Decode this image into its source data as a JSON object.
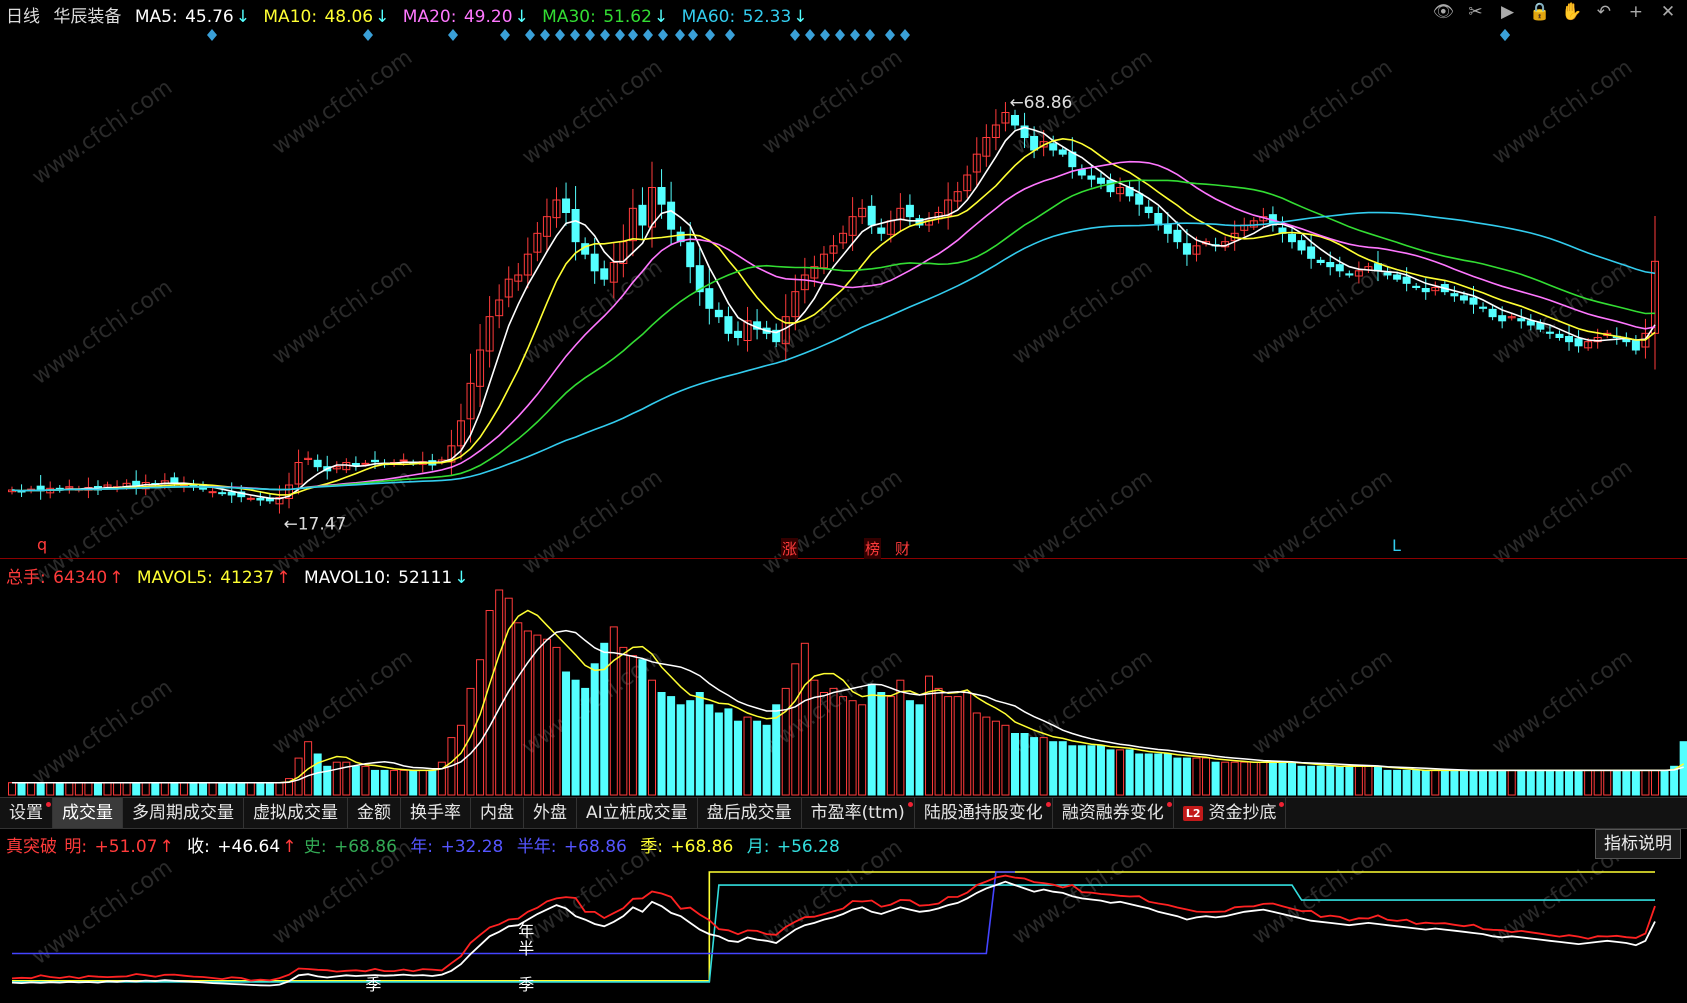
{
  "colors": {
    "up": "#ff3b3b",
    "down": "#54ffff",
    "ma5": "#ffffff",
    "ma10": "#ffff33",
    "ma20": "#ff77ff",
    "ma30": "#33dd33",
    "ma60": "#33ccee",
    "yuefen": "#33dddd",
    "nian": "#4444ff",
    "shi": "#33aa55"
  },
  "header": {
    "period": "日线",
    "stock_name": "华辰装备",
    "ma5": {
      "label": "MA5: ",
      "value": "45.76",
      "arrow": "↓"
    },
    "ma10": {
      "label": "MA10: ",
      "value": "48.06",
      "arrow": "↓"
    },
    "ma20": {
      "label": "MA20: ",
      "value": "49.20",
      "arrow": "↓"
    },
    "ma30": {
      "label": "MA30: ",
      "value": "51.62",
      "arrow": "↓"
    },
    "ma60": {
      "label": "MA60: ",
      "value": "52.33",
      "arrow": "↓"
    }
  },
  "toolbar": {
    "eye": "👁",
    "cut": "✂",
    "play": "▶",
    "lock": "🔒",
    "hand": "✋",
    "undo": "↶",
    "plus": "+",
    "close": "✕"
  },
  "markers": {
    "q": "q",
    "zhang": "涨",
    "bang": "榜",
    "cai": "财",
    "L": "L"
  },
  "vol_header": {
    "zongshou": {
      "label": "总手: ",
      "value": "64340",
      "arrow": "↑"
    },
    "mavol5": {
      "label": "MAVOL5: ",
      "value": "41237",
      "arrow": "↑"
    },
    "mavol10": {
      "label": "MAVOL10: ",
      "value": "52111",
      "arrow": "↓"
    }
  },
  "tabs": [
    {
      "label": "设置",
      "dot": true
    },
    {
      "label": "成交量",
      "dot": false,
      "active": true
    },
    {
      "label": "多周期成交量",
      "dot": false
    },
    {
      "label": "虚拟成交量",
      "dot": false
    },
    {
      "label": "金额",
      "dot": false
    },
    {
      "label": "换手率",
      "dot": false
    },
    {
      "label": "内盘",
      "dot": false
    },
    {
      "label": "外盘",
      "dot": false
    },
    {
      "label": "AI立桩成交量",
      "dot": false
    },
    {
      "label": "盘后成交量",
      "dot": false
    },
    {
      "label": "市盈率(ttm)",
      "dot": true
    },
    {
      "label": "陆股通持股变化",
      "dot": true
    },
    {
      "label": "融资融券变化",
      "dot": true
    },
    {
      "label": "资金抄底",
      "dot": true,
      "l2": "L2"
    }
  ],
  "indicator": {
    "name": "真突破",
    "help": "指标说明",
    "ming": {
      "label": "明: ",
      "value": "+51.07",
      "arrow": "↑"
    },
    "shou": {
      "label": "收: ",
      "value": "+46.64",
      "arrow": "↑"
    },
    "shi": {
      "label": "史: ",
      "value": "+68.86"
    },
    "nian": {
      "label": "年: ",
      "value": "+32.28"
    },
    "bannian": {
      "label": "半年: ",
      "value": "+68.86"
    },
    "ji": {
      "label": "季: ",
      "value": "+68.86"
    },
    "yue": {
      "label": "月: ",
      "value": "+56.28"
    },
    "lbl_nian": "年",
    "lbl_ban": "半",
    "lbl_ji1": "季",
    "lbl_ji2": "季"
  },
  "watermark": "www.cfchi.com",
  "chart_data": {
    "type": "candlestick",
    "high_label": "68.86",
    "low_label": "17.47",
    "ylim": [
      15,
      72
    ],
    "closes": [
      19.2,
      19.0,
      19.3,
      19.1,
      19.4,
      19.2,
      19.6,
      19.3,
      19.5,
      19.2,
      19.8,
      19.6,
      20.0,
      19.7,
      20.1,
      19.9,
      20.3,
      20.0,
      19.8,
      19.6,
      19.3,
      19.0,
      18.8,
      18.6,
      18.4,
      18.2,
      18.0,
      17.9,
      18.3,
      19.8,
      22.5,
      23.0,
      22.0,
      21.5,
      22.0,
      22.5,
      22.2,
      22.4,
      22.6,
      22.3,
      22.5,
      22.8,
      22.4,
      22.6,
      22.2,
      22.8,
      24.5,
      27.5,
      32.0,
      36.0,
      40.0,
      42.0,
      44.5,
      45.0,
      47.5,
      50.0,
      52.0,
      54.0,
      52.5,
      49.0,
      47.5,
      45.5,
      44.5,
      46.5,
      49.0,
      53.0,
      51.0,
      55.5,
      53.5,
      50.5,
      49.0,
      46.0,
      43.0,
      41.0,
      40.0,
      38.0,
      37.5,
      39.5,
      38.5,
      38.0,
      37.0,
      40.0,
      43.0,
      45.0,
      46.0,
      47.5,
      48.5,
      50.0,
      52.0,
      53.0,
      51.0,
      50.0,
      51.5,
      53.0,
      52.0,
      51.0,
      51.5,
      52.5,
      54.0,
      55.0,
      57.0,
      59.5,
      61.5,
      63.0,
      64.5,
      63.0,
      61.5,
      60.0,
      61.0,
      60.0,
      59.5,
      58.0,
      57.0,
      56.5,
      56.0,
      55.0,
      55.5,
      54.5,
      53.5,
      52.5,
      51.0,
      50.0,
      49.0,
      47.5,
      48.5,
      49.0,
      48.5,
      49.0,
      50.0,
      51.0,
      51.5,
      52.0,
      51.0,
      50.0,
      49.0,
      48.0,
      47.0,
      46.5,
      46.0,
      45.5,
      45.0,
      45.5,
      46.0,
      45.5,
      45.0,
      44.5,
      44.0,
      43.5,
      43.0,
      43.5,
      43.0,
      42.5,
      42.0,
      41.5,
      41.0,
      40.0,
      39.5,
      40.0,
      39.5,
      39.0,
      38.5,
      38.0,
      37.5,
      37.0,
      36.5,
      37.0,
      37.5,
      38.0,
      37.5,
      37.0,
      36.0,
      38.0,
      46.64
    ],
    "ma_series": [
      "MA5",
      "MA10",
      "MA20",
      "MA30",
      "MA60"
    ],
    "volume": {
      "values_note": "total hands per day",
      "last": 64340,
      "mavol5": 41237,
      "mavol10": 52111,
      "vols": [
        3,
        3,
        3,
        3,
        3,
        3,
        3,
        3,
        3,
        3,
        3,
        3,
        3,
        3,
        3,
        3,
        3,
        3,
        3,
        3,
        3,
        3,
        3,
        3,
        3,
        3,
        3,
        3,
        3,
        4,
        9,
        13,
        10,
        7,
        8,
        8,
        7,
        7,
        6,
        6,
        6,
        6,
        6,
        6,
        6,
        8,
        14,
        17,
        26,
        33,
        45,
        50,
        48,
        42,
        40,
        39,
        38,
        36,
        30,
        28,
        26,
        32,
        37,
        41,
        36,
        34,
        33,
        28,
        25,
        24,
        22,
        23,
        25,
        22,
        20,
        21,
        18,
        19,
        18,
        17,
        22,
        26,
        32,
        37,
        28,
        25,
        26,
        24,
        23,
        22,
        27,
        25,
        24,
        28,
        23,
        22,
        29,
        26,
        24,
        24,
        25,
        20,
        19,
        18,
        17,
        15,
        15,
        14,
        14,
        13,
        13,
        12,
        12,
        12,
        12,
        11,
        11,
        11,
        10,
        10,
        10,
        10,
        9,
        9,
        9,
        9,
        8,
        8,
        8,
        8,
        8,
        8,
        8,
        8,
        8,
        7,
        7,
        7,
        7,
        7,
        7,
        7,
        7,
        7,
        6,
        6,
        6,
        6,
        6,
        6,
        6,
        6,
        6,
        6,
        6,
        6,
        6,
        6,
        6,
        6,
        6,
        6,
        6,
        6,
        6,
        6,
        6,
        6,
        6,
        6,
        6,
        6,
        6,
        6,
        7,
        13
      ]
    },
    "indicator_levels": {
      "ji": 68.86,
      "nian": 32.28,
      "yue": 56.28,
      "ban": 68.86
    }
  }
}
